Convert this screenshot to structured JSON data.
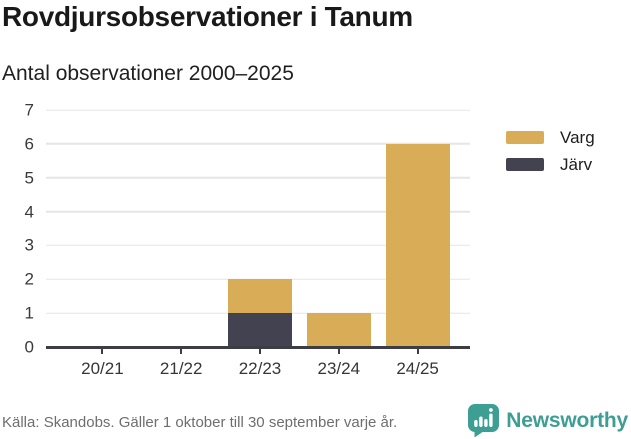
{
  "header": {
    "title": "Rovdjursobservationer i Tanum",
    "subtitle": "Antal observationer 2000–2025"
  },
  "chart_data": {
    "type": "bar",
    "stacked": true,
    "title": "Rovdjursobservationer i Tanum",
    "subtitle": "Antal observationer 2000–2025",
    "categories": [
      "20/21",
      "21/22",
      "22/23",
      "23/24",
      "24/25"
    ],
    "series": [
      {
        "name": "Varg",
        "color": "#d9ac57",
        "values": [
          0,
          0,
          1,
          1,
          6
        ]
      },
      {
        "name": "Järv",
        "color": "#434250",
        "values": [
          0,
          0,
          1,
          0,
          0
        ]
      }
    ],
    "totals": [
      0,
      0,
      2,
      1,
      6
    ],
    "xlabel": "",
    "ylabel": "",
    "ylim": [
      0,
      7
    ],
    "yticks": [
      0,
      1,
      2,
      3,
      4,
      5,
      6,
      7
    ],
    "grid": true,
    "legend_position": "right"
  },
  "legend": {
    "items": [
      {
        "label": "Varg",
        "color": "#d9ac57"
      },
      {
        "label": "Järv",
        "color": "#434250"
      }
    ]
  },
  "footer": {
    "source": "Källa: Skandobs. Gäller 1 oktober till 30 september varje år.",
    "brand": "Newsworthy"
  },
  "colors": {
    "varg_gold": "#d9ac57",
    "jarv_dark": "#434250",
    "axis": "#3d3d46",
    "gridline": "#e5e5e5",
    "brand_teal": "#3d9e93",
    "source_gray": "#6e6e6e"
  }
}
